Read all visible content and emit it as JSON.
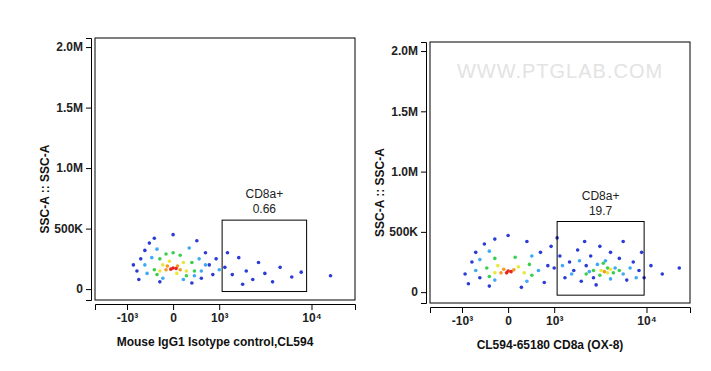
{
  "chart_data": [
    {
      "type": "scatter",
      "log": "x",
      "xlabel": "Mouse IgG1 Isotype control,CL594",
      "ylabel": "SSC-A :: SSC-A",
      "xlim": [
        -2500,
        25000
      ],
      "ylim": [
        -90000,
        2075000
      ],
      "xticks": [
        {
          "value": -1000,
          "label": "-10³"
        },
        0,
        {
          "value": 1000,
          "label": "10³"
        },
        {
          "value": 10000,
          "label": "10⁴"
        }
      ],
      "yticks": [
        0,
        {
          "value": 500000,
          "label": "500K"
        },
        {
          "value": 1000000,
          "label": "1.0M"
        },
        {
          "value": 1500000,
          "label": "1.5M"
        },
        {
          "value": 2000000,
          "label": "2.0M"
        }
      ],
      "gate": {
        "label": "CD8a+",
        "value": 0.66,
        "x": [
          1100,
          9000
        ],
        "y": [
          -20000,
          570000
        ]
      },
      "x": [
        -700,
        -600,
        -500,
        -400,
        -300,
        600,
        700,
        500,
        -650,
        -200,
        300,
        900,
        1200,
        1500,
        1800,
        2200,
        2600,
        3000,
        3500,
        4200,
        5000,
        6500,
        8000,
        15000,
        1300,
        2000,
        -800,
        800,
        400,
        0,
        -450,
        -350,
        -250,
        250,
        450,
        500,
        -500,
        150,
        -150,
        350,
        600,
        1000,
        -300,
        -200,
        -100,
        100,
        300,
        350,
        200,
        -250,
        0,
        -150,
        -50,
        150,
        200,
        -200,
        50,
        -80,
        60,
        100,
        -100,
        0,
        -30,
        40
      ],
      "values": [
        150000,
        250000,
        320000,
        380000,
        420000,
        300000,
        200000,
        90000,
        80000,
        60000,
        50000,
        250000,
        180000,
        120000,
        260000,
        150000,
        80000,
        220000,
        130000,
        60000,
        180000,
        100000,
        140000,
        110000,
        300000,
        40000,
        200000,
        120000,
        400000,
        450000,
        130000,
        260000,
        330000,
        340000,
        250000,
        150000,
        200000,
        80000,
        90000,
        110000,
        200000,
        160000,
        160000,
        250000,
        290000,
        280000,
        220000,
        150000,
        110000,
        120000,
        300000,
        200000,
        230000,
        220000,
        150000,
        150000,
        130000,
        190000,
        190000,
        160000,
        160000,
        175000,
        165000,
        170000
      ],
      "colors": [
        "#2a3bd6",
        "#2a3bd6",
        "#2a3bd6",
        "#2a3bd6",
        "#2a3bd6",
        "#2a3bd6",
        "#2a3bd6",
        "#2a3bd6",
        "#2a3bd6",
        "#2a3bd6",
        "#2a3bd6",
        "#2a3bd6",
        "#2a3bd6",
        "#2a3bd6",
        "#2a3bd6",
        "#2a3bd6",
        "#2a3bd6",
        "#2a3bd6",
        "#2a3bd6",
        "#2a3bd6",
        "#2a3bd6",
        "#2a3bd6",
        "#2a3bd6",
        "#2a3bd6",
        "#2a3bd6",
        "#2a3bd6",
        "#2a3bd6",
        "#2a3bd6",
        "#2a3bd6",
        "#2a3bd6",
        "#3fa9f5",
        "#3fa9f5",
        "#3fa9f5",
        "#3fa9f5",
        "#3fa9f5",
        "#3fa9f5",
        "#3fa9f5",
        "#3fa9f5",
        "#3fa9f5",
        "#3fa9f5",
        "#3fa9f5",
        "#3fa9f5",
        "#3ccf4e",
        "#3ccf4e",
        "#3ccf4e",
        "#3ccf4e",
        "#3ccf4e",
        "#3ccf4e",
        "#3ccf4e",
        "#3ccf4e",
        "#3ccf4e",
        "#e8e83a",
        "#e8e83a",
        "#e8e83a",
        "#e8e83a",
        "#e8e83a",
        "#e8e83a",
        "#f59a23",
        "#f59a23",
        "#f59a23",
        "#f59a23",
        "#e8261e",
        "#e8261e",
        "#e8261e"
      ]
    },
    {
      "type": "scatter",
      "log": "x",
      "xlabel": "CL594-65180 CD8a (OX-8)",
      "ylabel": "SSC-A :: SSC-A",
      "watermark": "WWW.PTGLAB.COM",
      "xlim": [
        -2500,
        25000
      ],
      "ylim": [
        -90000,
        2075000
      ],
      "xticks": [
        {
          "value": -1000,
          "label": "-10³"
        },
        0,
        {
          "value": 1000,
          "label": "10³"
        },
        {
          "value": 10000,
          "label": "10⁴"
        }
      ],
      "yticks": [
        0,
        {
          "value": 500000,
          "label": "500K"
        },
        {
          "value": 1000000,
          "label": "1.0M"
        },
        {
          "value": 1500000,
          "label": "1.5M"
        },
        {
          "value": 2000000,
          "label": "2.0M"
        }
      ],
      "gate": {
        "label": "CD8a+",
        "value": 19.7,
        "x": [
          1100,
          9500
        ],
        "y": [
          -25000,
          586000
        ]
      },
      "x": [
        -900,
        -700,
        -600,
        -400,
        -200,
        300,
        600,
        800,
        700,
        -800,
        -300,
        200,
        1000,
        1200,
        1400,
        1600,
        1800,
        2000,
        2200,
        2500,
        2800,
        3000,
        3500,
        4500,
        5500,
        6500,
        7500,
        8500,
        9500,
        11000,
        14000,
        20000,
        1100,
        3200,
        6000,
        900,
        2400,
        0,
        -500,
        9000,
        -500,
        -300,
        400,
        550,
        -600,
        1300,
        1700,
        2100,
        2700,
        3300,
        4000,
        5000,
        6000,
        7000,
        8000,
        4500,
        300,
        -200,
        -350,
        -200,
        100,
        350,
        400,
        -300,
        3000,
        3500,
        4200,
        4800,
        5500,
        3800,
        2500,
        -150,
        150,
        250,
        -200,
        3600,
        4200,
        4500,
        -60,
        80,
        -100,
        3900,
        0,
        -20,
        40
      ],
      "values": [
        150000,
        250000,
        330000,
        400000,
        440000,
        420000,
        330000,
        220000,
        80000,
        70000,
        50000,
        40000,
        200000,
        300000,
        120000,
        250000,
        180000,
        350000,
        90000,
        220000,
        300000,
        120000,
        380000,
        330000,
        280000,
        100000,
        250000,
        180000,
        120000,
        220000,
        150000,
        200000,
        450000,
        60000,
        420000,
        380000,
        420000,
        470000,
        120000,
        330000,
        270000,
        340000,
        300000,
        180000,
        180000,
        220000,
        150000,
        260000,
        170000,
        230000,
        260000,
        200000,
        150000,
        200000,
        120000,
        110000,
        90000,
        100000,
        200000,
        280000,
        290000,
        230000,
        140000,
        130000,
        180000,
        140000,
        200000,
        160000,
        180000,
        240000,
        150000,
        220000,
        210000,
        160000,
        160000,
        180000,
        160000,
        190000,
        190000,
        185000,
        160000,
        170000,
        175000,
        160000,
        170000
      ],
      "colors": [
        "#2a3bd6",
        "#2a3bd6",
        "#2a3bd6",
        "#2a3bd6",
        "#2a3bd6",
        "#2a3bd6",
        "#2a3bd6",
        "#2a3bd6",
        "#2a3bd6",
        "#2a3bd6",
        "#2a3bd6",
        "#2a3bd6",
        "#2a3bd6",
        "#2a3bd6",
        "#2a3bd6",
        "#2a3bd6",
        "#2a3bd6",
        "#2a3bd6",
        "#2a3bd6",
        "#2a3bd6",
        "#2a3bd6",
        "#2a3bd6",
        "#2a3bd6",
        "#2a3bd6",
        "#2a3bd6",
        "#2a3bd6",
        "#2a3bd6",
        "#2a3bd6",
        "#2a3bd6",
        "#2a3bd6",
        "#2a3bd6",
        "#2a3bd6",
        "#2a3bd6",
        "#2a3bd6",
        "#2a3bd6",
        "#2a3bd6",
        "#2a3bd6",
        "#2a3bd6",
        "#2a3bd6",
        "#2a3bd6",
        "#3fa9f5",
        "#3fa9f5",
        "#3fa9f5",
        "#3fa9f5",
        "#3fa9f5",
        "#3fa9f5",
        "#3fa9f5",
        "#3fa9f5",
        "#3fa9f5",
        "#3fa9f5",
        "#3fa9f5",
        "#3fa9f5",
        "#3fa9f5",
        "#3fa9f5",
        "#3fa9f5",
        "#3fa9f5",
        "#3fa9f5",
        "#3fa9f5",
        "#3ccf4e",
        "#3ccf4e",
        "#3ccf4e",
        "#3ccf4e",
        "#3ccf4e",
        "#3ccf4e",
        "#3ccf4e",
        "#3ccf4e",
        "#3ccf4e",
        "#3ccf4e",
        "#3ccf4e",
        "#3ccf4e",
        "#3ccf4e",
        "#e8e83a",
        "#e8e83a",
        "#e8e83a",
        "#e8e83a",
        "#e8e83a",
        "#e8e83a",
        "#e8e83a",
        "#f59a23",
        "#f59a23",
        "#f59a23",
        "#f59a23",
        "#e8261e",
        "#e8261e",
        "#e8261e"
      ]
    }
  ]
}
